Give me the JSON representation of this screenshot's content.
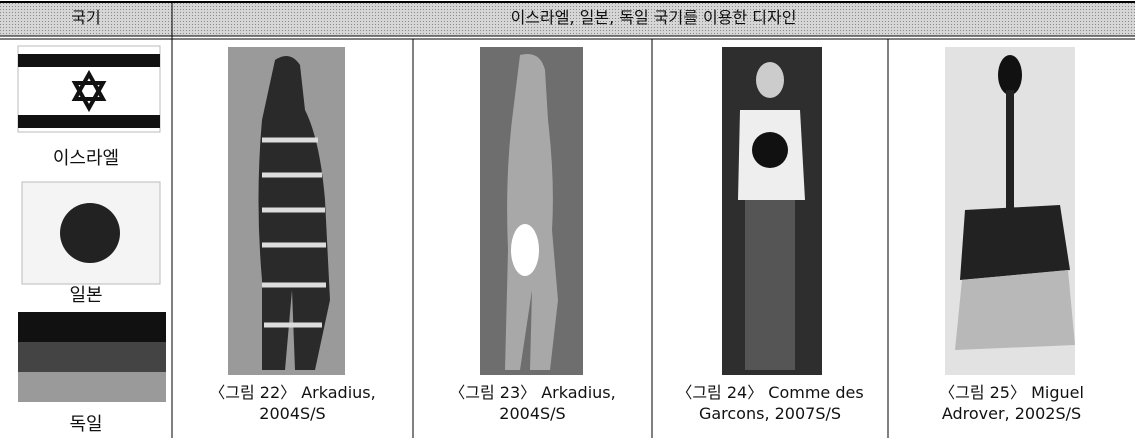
{
  "header": {
    "col1": "국기",
    "col2": "이스라엘, 일본, 독일 국기를 이용한 디자인"
  },
  "flags": [
    {
      "label": "이스라엘"
    },
    {
      "label": "일본"
    },
    {
      "label": "독일"
    }
  ],
  "designs": [
    {
      "caption": [
        "〈그림 22〉 Arkadius,",
        "2004S/S"
      ]
    },
    {
      "caption": [
        "〈그림 23〉 Arkadius,",
        "2004S/S"
      ]
    },
    {
      "caption": [
        "〈그림 24〉 Comme des",
        "Garcons, 2007S/S"
      ]
    },
    {
      "caption": [
        "〈그림 25〉 Miguel",
        "Adrover, 2002S/S"
      ]
    }
  ]
}
